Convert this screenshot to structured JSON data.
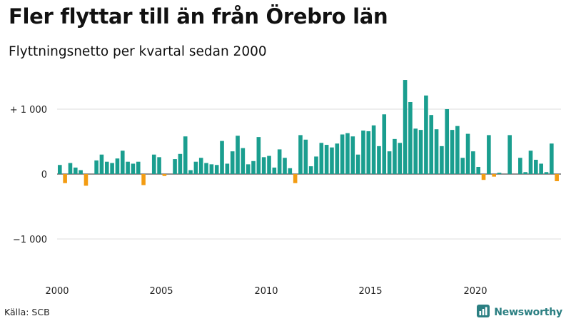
{
  "header": {
    "title": "Fler flyttar till än från Örebro län",
    "subtitle": "Flyttningsnetto per kvartal sedan 2000"
  },
  "footer": {
    "source": "Källa: SCB",
    "brand": "Newsworthy",
    "brand_icon": "bar-chart-logo-icon"
  },
  "colors": {
    "positive": "#1a9e8f",
    "negative": "#f39c12",
    "brand": "#2b7f82",
    "grid": "#dddddd"
  },
  "chart_data": {
    "type": "bar",
    "title": "Fler flyttar till än från Örebro län",
    "subtitle": "Flyttningsnetto per kvartal sedan 2000",
    "xlabel": "",
    "ylabel": "",
    "x_ticks": [
      "2000",
      "2005",
      "2010",
      "2015",
      "2020"
    ],
    "y_ticks": [
      {
        "value": 1000,
        "label": "+ 1 000"
      },
      {
        "value": 0,
        "label": "0"
      },
      {
        "value": -1000,
        "label": "−1 000"
      }
    ],
    "ylim": [
      -1600,
      1500
    ],
    "grid": true,
    "start": "2000 Q1",
    "end": "2023 Q4",
    "values": [
      140,
      -140,
      170,
      100,
      60,
      -180,
      0,
      210,
      300,
      190,
      170,
      240,
      360,
      190,
      160,
      190,
      -170,
      0,
      300,
      260,
      -30,
      0,
      230,
      310,
      580,
      60,
      190,
      250,
      170,
      150,
      140,
      510,
      160,
      350,
      590,
      400,
      150,
      200,
      570,
      260,
      280,
      100,
      380,
      250,
      90,
      -140,
      600,
      530,
      120,
      270,
      480,
      450,
      410,
      470,
      610,
      630,
      580,
      300,
      670,
      660,
      750,
      430,
      920,
      350,
      540,
      480,
      1450,
      1110,
      700,
      680,
      1210,
      910,
      690,
      430,
      1000,
      680,
      740,
      250,
      620,
      350,
      110,
      -90,
      600,
      -40,
      20,
      0,
      600,
      0,
      250,
      30,
      360,
      220,
      160,
      30,
      470,
      -110
    ]
  }
}
